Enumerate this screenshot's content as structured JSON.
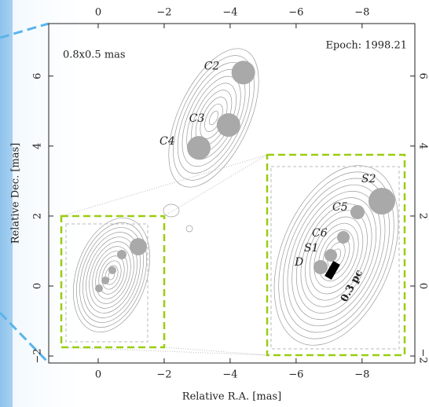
{
  "chart_data": {
    "type": "scatter",
    "annotations": [
      "0.8x0.5 mas",
      "Epoch: 1998.21"
    ],
    "xlabel": "Relative R.A. [mas]",
    "ylabel": "Relative Dec. [mas]",
    "xlim": [
      1.5,
      -9.6
    ],
    "ylim": [
      -2.2,
      7.5
    ],
    "xticks": [
      0,
      {
        "value": -2,
        "label": "−2"
      },
      {
        "value": -4,
        "label": "−4"
      },
      {
        "value": -6,
        "label": "−6"
      },
      {
        "value": -8,
        "label": "−8"
      }
    ],
    "yticks": [
      {
        "value": -2,
        "label": "−2"
      },
      0,
      2,
      4,
      6
    ],
    "series": [
      {
        "color": "#a9a9a9",
        "labels": [
          "C2",
          "C3",
          "C4"
        ],
        "x": [
          -4.4,
          -3.95,
          -3.05
        ],
        "y": [
          6.1,
          4.6,
          3.95
        ]
      }
    ],
    "inset_labels": [
      "S2",
      "C5",
      "C6",
      "S1",
      "D"
    ],
    "scale_bar": "0.3 pc"
  }
}
